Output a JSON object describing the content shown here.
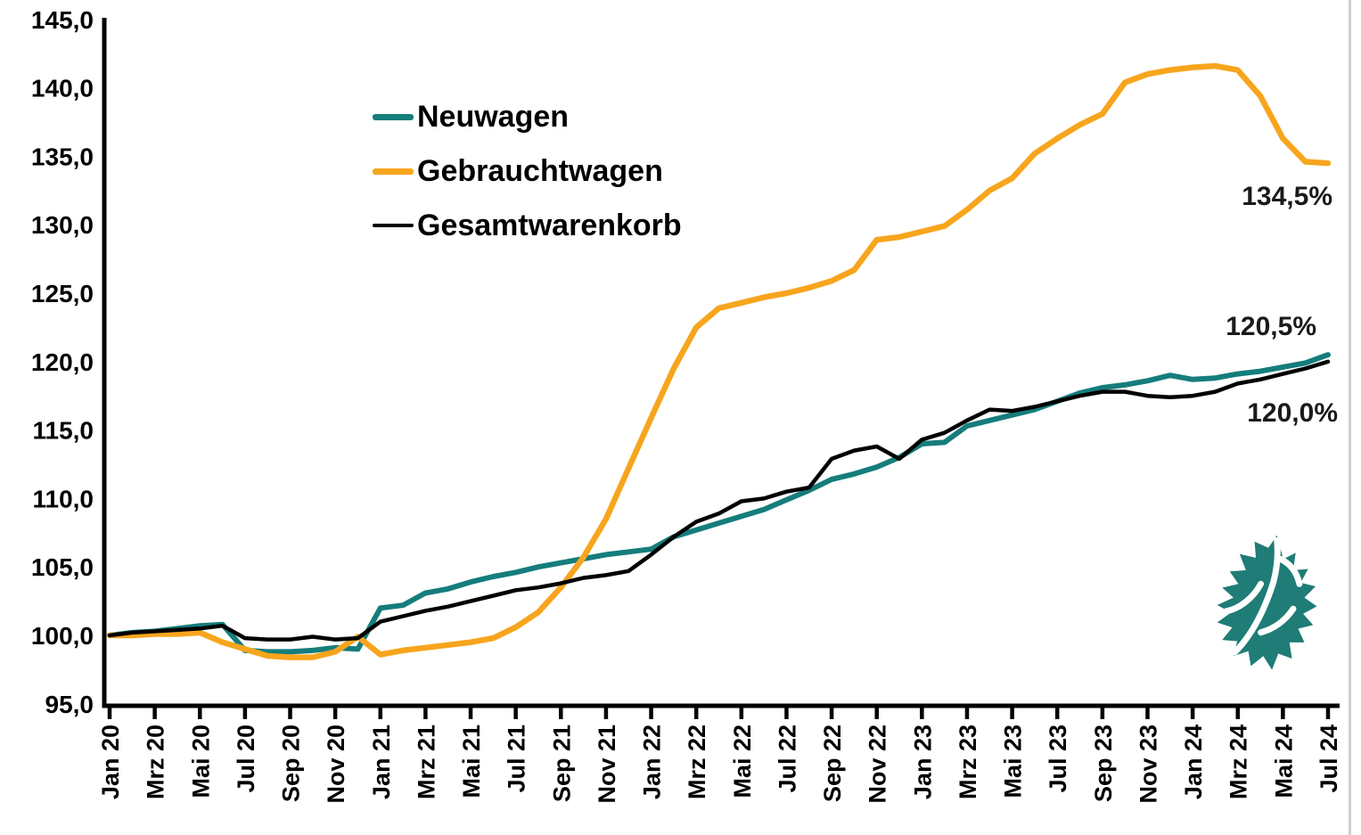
{
  "page": {
    "background": "#ffffff",
    "axis_color": "#000000",
    "right_border_color": "#cfcfcf"
  },
  "logo": {
    "icon": "leaf-icon",
    "color": "#1f7c76"
  },
  "annotations": {
    "gebrauchtwagen_end": "134,5%",
    "neuwagen_end": "120,5%",
    "gesamtwarenkorb_end": "120,0%"
  },
  "chart_data": {
    "type": "line",
    "title": "",
    "xlabel": "",
    "ylabel": "",
    "grid": false,
    "legend_position": "inside-top-left",
    "ylim": [
      95,
      145
    ],
    "x_months_total": 55,
    "x_tick_labels": [
      "Jan 20",
      "Mrz 20",
      "Mai 20",
      "Jul 20",
      "Sep 20",
      "Nov 20",
      "Jan 21",
      "Mrz 21",
      "Mai 21",
      "Jul 21",
      "Sep 21",
      "Nov 21",
      "Jan 22",
      "Mrz 22",
      "Mai 22",
      "Jul 22",
      "Sep 22",
      "Nov 22",
      "Jan 23",
      "Mrz 23",
      "Mai 23",
      "Jul 23",
      "Sep 23",
      "Nov 23",
      "Jan 24",
      "Mrz 24",
      "Mai 24",
      "Jul 24"
    ],
    "y_ticks": [
      {
        "value": 95,
        "label": "95,0"
      },
      {
        "value": 100,
        "label": "100,0"
      },
      {
        "value": 105,
        "label": "105,0"
      },
      {
        "value": 110,
        "label": "110,0"
      },
      {
        "value": 115,
        "label": "115,0"
      },
      {
        "value": 120,
        "label": "120,0"
      },
      {
        "value": 125,
        "label": "125,0"
      },
      {
        "value": 130,
        "label": "130,0"
      },
      {
        "value": 135,
        "label": "135,0"
      },
      {
        "value": 140,
        "label": "140,0"
      },
      {
        "value": 145,
        "label": "145,0"
      }
    ],
    "series": [
      {
        "name": "Neuwagen",
        "color": "#157d7c",
        "end_label": "120,5%",
        "values": [
          100.0,
          100.2,
          100.3,
          100.5,
          100.7,
          100.8,
          98.9,
          98.8,
          98.8,
          98.9,
          99.1,
          99.0,
          102.0,
          102.2,
          103.1,
          103.4,
          103.9,
          104.3,
          104.6,
          105.0,
          105.3,
          105.6,
          105.9,
          106.1,
          106.3,
          107.2,
          107.7,
          108.2,
          108.7,
          109.2,
          109.9,
          110.6,
          111.4,
          111.8,
          112.3,
          113.0,
          114.0,
          114.1,
          115.3,
          115.7,
          116.1,
          116.5,
          117.1,
          117.7,
          118.1,
          118.3,
          118.6,
          119.0,
          118.7,
          118.8,
          119.1,
          119.3,
          119.6,
          119.9,
          120.5
        ]
      },
      {
        "name": "Gebrauchtwagen",
        "color": "#f7a51d",
        "end_label": "134,5%",
        "values": [
          100.0,
          100.0,
          100.1,
          100.1,
          100.2,
          99.5,
          99.0,
          98.5,
          98.4,
          98.4,
          98.8,
          99.9,
          98.6,
          98.9,
          99.1,
          99.3,
          99.5,
          99.8,
          100.6,
          101.7,
          103.5,
          105.7,
          108.5,
          112.2,
          115.9,
          119.5,
          122.5,
          123.9,
          124.3,
          124.7,
          125.0,
          125.4,
          125.9,
          126.7,
          128.9,
          129.1,
          129.5,
          129.9,
          131.1,
          132.5,
          133.4,
          135.2,
          136.3,
          137.3,
          138.1,
          140.4,
          141.0,
          141.3,
          141.5,
          141.6,
          141.3,
          139.4,
          136.3,
          134.6,
          134.5
        ]
      },
      {
        "name": "Gesamtwarenkorb",
        "color": "#000000",
        "end_label": "120,0%",
        "values": [
          100.0,
          100.2,
          100.3,
          100.4,
          100.5,
          100.7,
          99.8,
          99.7,
          99.7,
          99.9,
          99.7,
          99.8,
          101.0,
          101.4,
          101.8,
          102.1,
          102.5,
          102.9,
          103.3,
          103.5,
          103.8,
          104.2,
          104.4,
          104.7,
          105.9,
          107.2,
          108.3,
          108.9,
          109.8,
          110.0,
          110.5,
          110.8,
          112.9,
          113.5,
          113.8,
          112.9,
          114.3,
          114.8,
          115.7,
          116.5,
          116.4,
          116.7,
          117.1,
          117.5,
          117.8,
          117.8,
          117.5,
          117.4,
          117.5,
          117.8,
          118.4,
          118.7,
          119.1,
          119.5,
          120.0
        ]
      }
    ]
  }
}
